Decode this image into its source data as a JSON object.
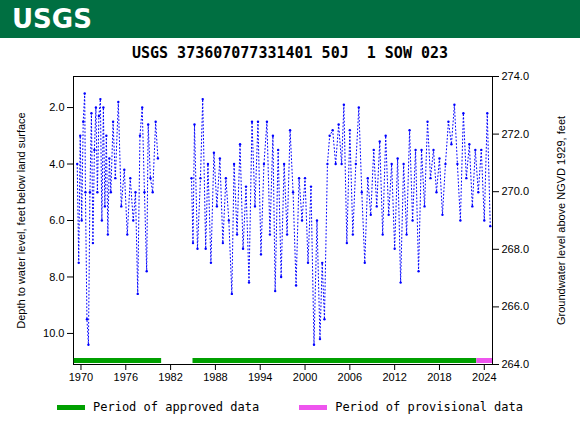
{
  "chart_data": {
    "type": "line",
    "logo_text": "USGS",
    "title": "USGS 373607077331401 50J  1 SOW 023",
    "y_label": "Depth to water level, feet below land surface",
    "y2_label": "Groundwater level above NGVD 1929, feet",
    "xlim": [
      1969,
      2025.1
    ],
    "xticks": [
      1970,
      1976,
      1982,
      1988,
      1994,
      2000,
      2006,
      2012,
      2018,
      2024
    ],
    "ylim": [
      11.1,
      0.9
    ],
    "yticks": [
      {
        "value": 2,
        "label": "2.0"
      },
      {
        "value": 4,
        "label": "4.0"
      },
      {
        "value": 6,
        "label": "6.0"
      },
      {
        "value": 8,
        "label": "8.0"
      },
      {
        "value": 10,
        "label": "10.0"
      }
    ],
    "y2lim": [
      264,
      274
    ],
    "y2ticks": [
      {
        "value": 264,
        "label": "264.0"
      },
      {
        "value": 266,
        "label": "266.0"
      },
      {
        "value": 268,
        "label": "268.0"
      },
      {
        "value": 270,
        "label": "270.0"
      },
      {
        "value": 272,
        "label": "272.0"
      },
      {
        "value": 274,
        "label": "274.0"
      }
    ],
    "x": [
      1969.5,
      1969.7,
      1969.9,
      1970.1,
      1970.3,
      1970.5,
      1970.6,
      1970.8,
      1971.0,
      1971.2,
      1971.4,
      1971.6,
      1971.8,
      1972.0,
      1972.2,
      1972.4,
      1972.6,
      1972.8,
      1973.0,
      1973.2,
      1973.4,
      1973.6,
      1973.8,
      1974.0,
      1974.3,
      1974.6,
      1975.0,
      1975.4,
      1975.8,
      1976.2,
      1976.6,
      1977.0,
      1977.3,
      1977.6,
      1977.9,
      1978.2,
      1978.5,
      1978.8,
      1979.0,
      1979.3,
      1979.6,
      1980.0,
      1980.3,
      1982.5,
      1984.8,
      1985.0,
      1985.2,
      1985.6,
      1986.0,
      1986.3,
      1986.7,
      1987.0,
      1987.4,
      1987.8,
      1988.2,
      1988.6,
      1989.0,
      1989.4,
      1989.8,
      1990.2,
      1990.5,
      1990.9,
      1991.3,
      1991.7,
      1992.1,
      1992.5,
      1992.9,
      1993.3,
      1993.7,
      1994.1,
      1994.5,
      1994.9,
      1995.3,
      1995.7,
      1996.0,
      1996.4,
      1996.8,
      1997.2,
      1997.6,
      1998.0,
      1998.4,
      1998.8,
      1999.2,
      1999.6,
      2000.0,
      2000.4,
      2000.8,
      2001.2,
      2001.6,
      2002.0,
      2002.3,
      2002.6,
      2003.0,
      2003.3,
      2003.7,
      2004.1,
      2004.5,
      2004.9,
      2005.2,
      2005.6,
      2006.0,
      2006.4,
      2006.8,
      2007.2,
      2007.6,
      2008.0,
      2008.4,
      2008.8,
      2009.2,
      2009.6,
      2010.0,
      2010.4,
      2010.8,
      2011.2,
      2011.6,
      2012.0,
      2012.4,
      2012.8,
      2013.2,
      2013.6,
      2014.0,
      2014.4,
      2014.8,
      2015.2,
      2015.6,
      2016.0,
      2016.4,
      2016.8,
      2017.2,
      2017.6,
      2018.0,
      2018.4,
      2018.8,
      2019.2,
      2019.6,
      2020.0,
      2020.4,
      2020.8,
      2021.2,
      2021.6,
      2022.0,
      2022.4,
      2022.8,
      2023.2,
      2023.6,
      2024.0,
      2024.4,
      2024.8
    ],
    "series": [
      {
        "name": "Depth to water level",
        "color": "#0000ff",
        "marker": "dot",
        "line_style": "dotted",
        "values": [
          4,
          7.5,
          3,
          6,
          2.5,
          1.5,
          5,
          9.5,
          10.4,
          5,
          2.2,
          6.8,
          3.5,
          2.0,
          5,
          2.3,
          1.7,
          6,
          2.0,
          5.5,
          3.0,
          6.5,
          3.8,
          5,
          2.5,
          4.5,
          1.8,
          5.5,
          4.2,
          6.5,
          4.5,
          6.0,
          5.0,
          8.6,
          3.0,
          2.0,
          5.0,
          7.8,
          2.6,
          4.5,
          5,
          2.5,
          3.8,
          null,
          4.5,
          6.8,
          2.6,
          7.0,
          4.5,
          1.7,
          7.0,
          4.0,
          7.5,
          3.6,
          5.5,
          3.8,
          6.8,
          4.5,
          6.0,
          8.6,
          4.0,
          6.5,
          3.3,
          7.0,
          4.8,
          8.2,
          2.5,
          5.5,
          2.5,
          7.2,
          4.0,
          2.5,
          6.5,
          3.0,
          8.5,
          3.5,
          8.0,
          4.0,
          6.5,
          2.8,
          5.0,
          8.3,
          4.5,
          6.0,
          4.5,
          7.5,
          4.8,
          10.4,
          6.0,
          10.2,
          7.5,
          9.5,
          4.0,
          3.0,
          2.8,
          4.0,
          2.6,
          4.0,
          1.9,
          6.8,
          2.8,
          6.5,
          4.0,
          2.0,
          5.0,
          7.5,
          4.5,
          5.8,
          3.5,
          5.5,
          3.2,
          6.5,
          3.0,
          5.8,
          4.0,
          7.0,
          3.8,
          8.2,
          4.0,
          6.5,
          2.8,
          6.0,
          3.5,
          7.8,
          3.5,
          5.5,
          2.5,
          4.5,
          3.5,
          5.0,
          3.8,
          5.8,
          4.0,
          2.5,
          3.3,
          1.9,
          4.0,
          6.0,
          2.2,
          4.5,
          3.3,
          5.5,
          3.5,
          5.0,
          3.5,
          6.0,
          2.2,
          6.2
        ]
      }
    ],
    "periods": [
      {
        "name": "Period of approved data",
        "color": "#00a000",
        "start": 1969.1,
        "end": 1980.8
      },
      {
        "name": "Period of approved data",
        "color": "#00a000",
        "start": 1985.0,
        "end": 2023.0
      },
      {
        "name": "Period of provisional data",
        "color": "#ee55ee",
        "start": 2023.0,
        "end": 2025.1
      }
    ]
  }
}
